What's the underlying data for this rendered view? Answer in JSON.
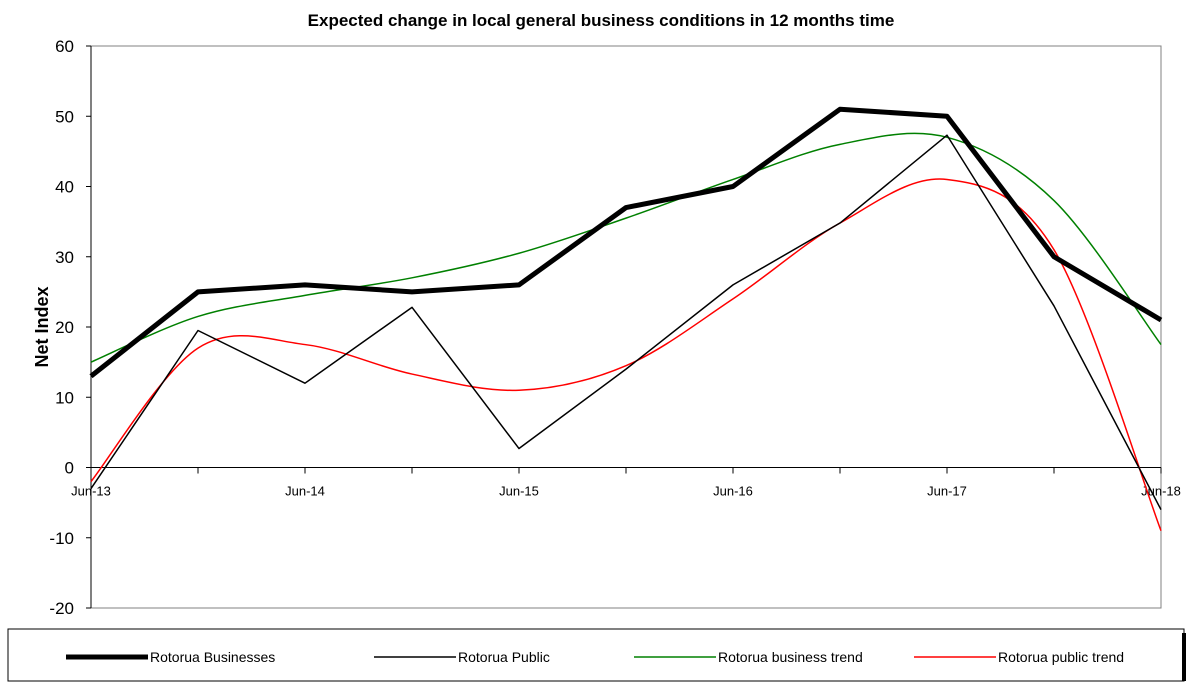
{
  "chart_data": {
    "type": "line",
    "title": "Expected change in local general business conditions in 12 months time",
    "ylabel": "Net Index",
    "xlabel": "",
    "ylim": [
      -20,
      60
    ],
    "yticks": [
      60,
      50,
      40,
      30,
      20,
      10,
      0,
      -10,
      -20
    ],
    "x_tick_labels": [
      "Jun-13",
      "Jun-14",
      "Jun-15",
      "Jun-16",
      "Jun-17",
      "Jun-18"
    ],
    "x_period_count": 10,
    "grid": false,
    "legend_position": "bottom",
    "series": [
      {
        "name": "Rotorua Businesses",
        "color": "#000000",
        "style": "thick",
        "values": [
          13,
          25,
          26,
          25,
          26,
          37,
          40,
          51,
          50,
          30,
          21
        ]
      },
      {
        "name": "Rotorua Public",
        "color": "#000000",
        "style": "thin",
        "values": [
          -3,
          19.5,
          12,
          22.8,
          2.7,
          14,
          26,
          34.8,
          47.3,
          23,
          -6
        ]
      },
      {
        "name": "Rotorua business trend",
        "color": "#008000",
        "style": "thin",
        "values": [
          15,
          21.5,
          24.5,
          27,
          30.5,
          35.5,
          41,
          46,
          47,
          38,
          17.5
        ]
      },
      {
        "name": "Rotorua public trend",
        "color": "#ff0000",
        "style": "thin",
        "values": [
          -2,
          17,
          17.5,
          13.3,
          11,
          14.5,
          24,
          34.8,
          41,
          31,
          -9
        ]
      }
    ]
  }
}
